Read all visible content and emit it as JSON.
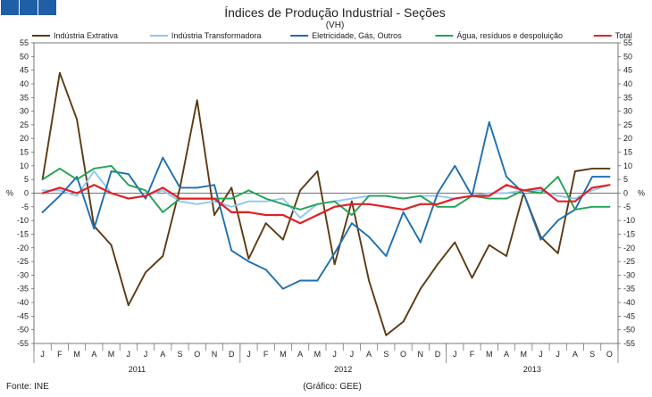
{
  "header": {
    "title": "Índices de Produção Industrial - Seções",
    "subtitle": "(VH)"
  },
  "footer": {
    "source": "Fonte: INE",
    "credit": "(Gráfico: GEE)"
  },
  "colors": {
    "extrativa": "#5c3a12",
    "transformadora": "#8fc8ee",
    "eletricidade": "#1f6fb0",
    "agua": "#21a454",
    "total": "#e21f26",
    "header_squares": "#1f5fa6"
  },
  "chart_data": {
    "type": "line",
    "title": "Índices de Produção Industrial - Seções",
    "subtitle": "(VH)",
    "ylabel": "%",
    "ylabel_right": "%",
    "ylim": [
      -55,
      55
    ],
    "yticks": [
      55,
      50,
      45,
      40,
      35,
      30,
      25,
      20,
      15,
      10,
      5,
      0,
      -5,
      -10,
      -15,
      -20,
      -25,
      -30,
      -35,
      -40,
      -45,
      -50,
      -55
    ],
    "grid": false,
    "legend_position": "top",
    "categories": [
      "J",
      "F",
      "M",
      "A",
      "M",
      "J",
      "J",
      "A",
      "S",
      "O",
      "N",
      "D",
      "J",
      "F",
      "M",
      "A",
      "M",
      "J",
      "J",
      "A",
      "S",
      "O",
      "N",
      "D",
      "J",
      "F",
      "M",
      "A",
      "M",
      "J",
      "J",
      "A",
      "S",
      "O"
    ],
    "years": [
      {
        "label": "2011",
        "start": 0,
        "end": 11
      },
      {
        "label": "2012",
        "start": 12,
        "end": 23
      },
      {
        "label": "2013",
        "start": 24,
        "end": 33
      }
    ],
    "series": [
      {
        "name": "Indústria Extrativa",
        "color_key": "extrativa",
        "values": [
          5,
          44,
          27,
          -12,
          -19,
          -41,
          -29,
          -23,
          2,
          34,
          -8,
          2,
          -24,
          -11,
          -17,
          1,
          8,
          -26,
          -3,
          -32,
          -52,
          -47,
          -35,
          -26,
          -18,
          -31,
          -19,
          -23,
          0,
          -16,
          -22,
          8,
          9,
          9
        ]
      },
      {
        "name": "Indústria Transformadora",
        "color_key": "transformadora",
        "values": [
          1,
          1,
          -1,
          8,
          0,
          -2,
          -1,
          1,
          -3,
          -4,
          -3,
          -5,
          -3,
          -3,
          -2,
          -9,
          -4,
          -3,
          -2,
          -1,
          -1,
          -2,
          -1,
          -1,
          -2,
          -1,
          0,
          0,
          1,
          1,
          -1,
          -2,
          1,
          3
        ]
      },
      {
        "name": "Eletricidade, Gás, Outros",
        "color_key": "eletricidade",
        "values": [
          -7,
          -1,
          6,
          -13,
          8,
          7,
          -2,
          13,
          2,
          2,
          3,
          -21,
          -25,
          -28,
          -35,
          -32,
          -32,
          -22,
          -11,
          -16,
          -23,
          -7,
          -18,
          0,
          10,
          -1,
          26,
          6,
          0,
          -17,
          -10,
          -6,
          6,
          6
        ]
      },
      {
        "name": "Água, resíduos e despoluição",
        "color_key": "agua",
        "values": [
          5,
          9,
          5,
          9,
          10,
          3,
          1,
          -7,
          -2,
          -2,
          -2,
          -2,
          1,
          -2,
          -4,
          -6,
          -4,
          -3,
          -8,
          -1,
          -1,
          -2,
          -1,
          -5,
          -5,
          -1,
          -2,
          -2,
          1,
          0,
          6,
          -6,
          -5,
          -5
        ]
      },
      {
        "name": "Total",
        "color_key": "total",
        "values": [
          0,
          2,
          0,
          3,
          0,
          -2,
          -1,
          2,
          -2,
          -2,
          -2,
          -7,
          -7,
          -8,
          -8,
          -11,
          -8,
          -5,
          -4,
          -4,
          -5,
          -6,
          -4,
          -4,
          -2,
          -1,
          -1,
          3,
          1,
          2,
          -3,
          -3,
          2,
          3
        ]
      }
    ]
  }
}
